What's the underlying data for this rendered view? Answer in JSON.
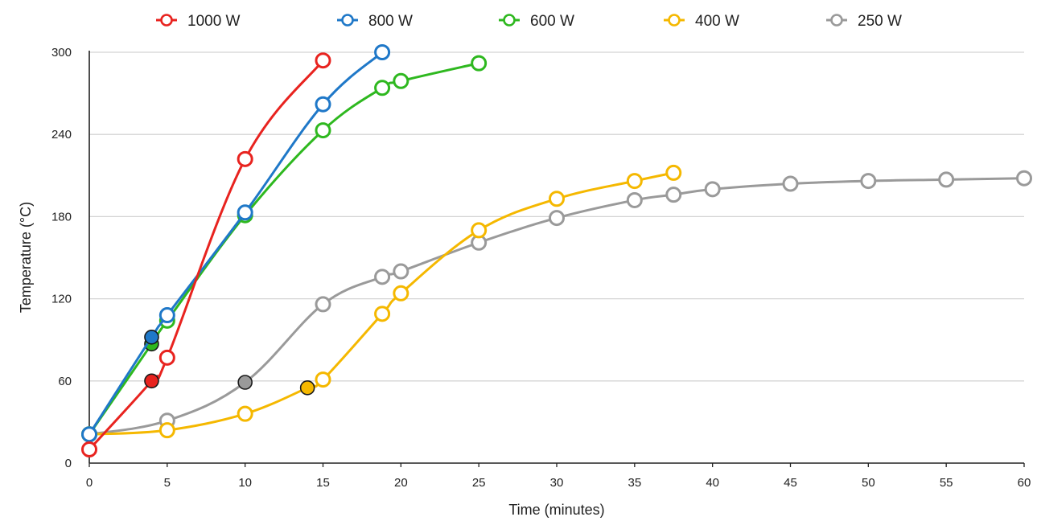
{
  "chart_data": {
    "type": "line",
    "title": "",
    "xlabel": "Time (minutes)",
    "ylabel": "Temperature (°C)",
    "xlim": [
      0,
      60
    ],
    "ylim": [
      0,
      300
    ],
    "xticks": [
      "0",
      "5",
      "10",
      "15",
      "20",
      "25",
      "30",
      "35",
      "40",
      "45",
      "50",
      "55",
      "60"
    ],
    "yticks": [
      "0",
      "60",
      "120",
      "180",
      "240",
      "300"
    ],
    "grid": "horizontal",
    "legend_position": "top",
    "series": [
      {
        "name": "1000 W",
        "color": "#e8231f",
        "points": [
          [
            0,
            10
          ],
          [
            4,
            60
          ],
          [
            5,
            77
          ],
          [
            10,
            222
          ],
          [
            15,
            294
          ]
        ],
        "filled_index": 1
      },
      {
        "name": "800 W",
        "color": "#1f78c8",
        "points": [
          [
            0,
            21
          ],
          [
            4,
            92
          ],
          [
            5,
            108
          ],
          [
            10,
            183
          ],
          [
            15,
            262
          ],
          [
            18.8,
            300
          ]
        ],
        "filled_index": 1
      },
      {
        "name": "600 W",
        "color": "#2eb81f",
        "points": [
          [
            0,
            21
          ],
          [
            4,
            87
          ],
          [
            5,
            104
          ],
          [
            10,
            181
          ],
          [
            15,
            243
          ],
          [
            18.8,
            274
          ],
          [
            20,
            279
          ],
          [
            25,
            292
          ]
        ],
        "filled_index": 1
      },
      {
        "name": "400 W",
        "color": "#f5b800",
        "points": [
          [
            0,
            21
          ],
          [
            5,
            24
          ],
          [
            10,
            36
          ],
          [
            14,
            55
          ],
          [
            15,
            61
          ],
          [
            18.8,
            109
          ],
          [
            20,
            124
          ],
          [
            25,
            170
          ],
          [
            30,
            193
          ],
          [
            35,
            206
          ],
          [
            37.5,
            212
          ]
        ],
        "filled_index": 3
      },
      {
        "name": "250 W",
        "color": "#9a9a9a",
        "points": [
          [
            0,
            21
          ],
          [
            5,
            31
          ],
          [
            10,
            59
          ],
          [
            15,
            116
          ],
          [
            18.8,
            136
          ],
          [
            20,
            140
          ],
          [
            25,
            161
          ],
          [
            30,
            179
          ],
          [
            35,
            192
          ],
          [
            37.5,
            196
          ],
          [
            40,
            200
          ],
          [
            45,
            204
          ],
          [
            50,
            206
          ],
          [
            55,
            207
          ],
          [
            60,
            208
          ]
        ],
        "filled_index": 2
      }
    ]
  }
}
